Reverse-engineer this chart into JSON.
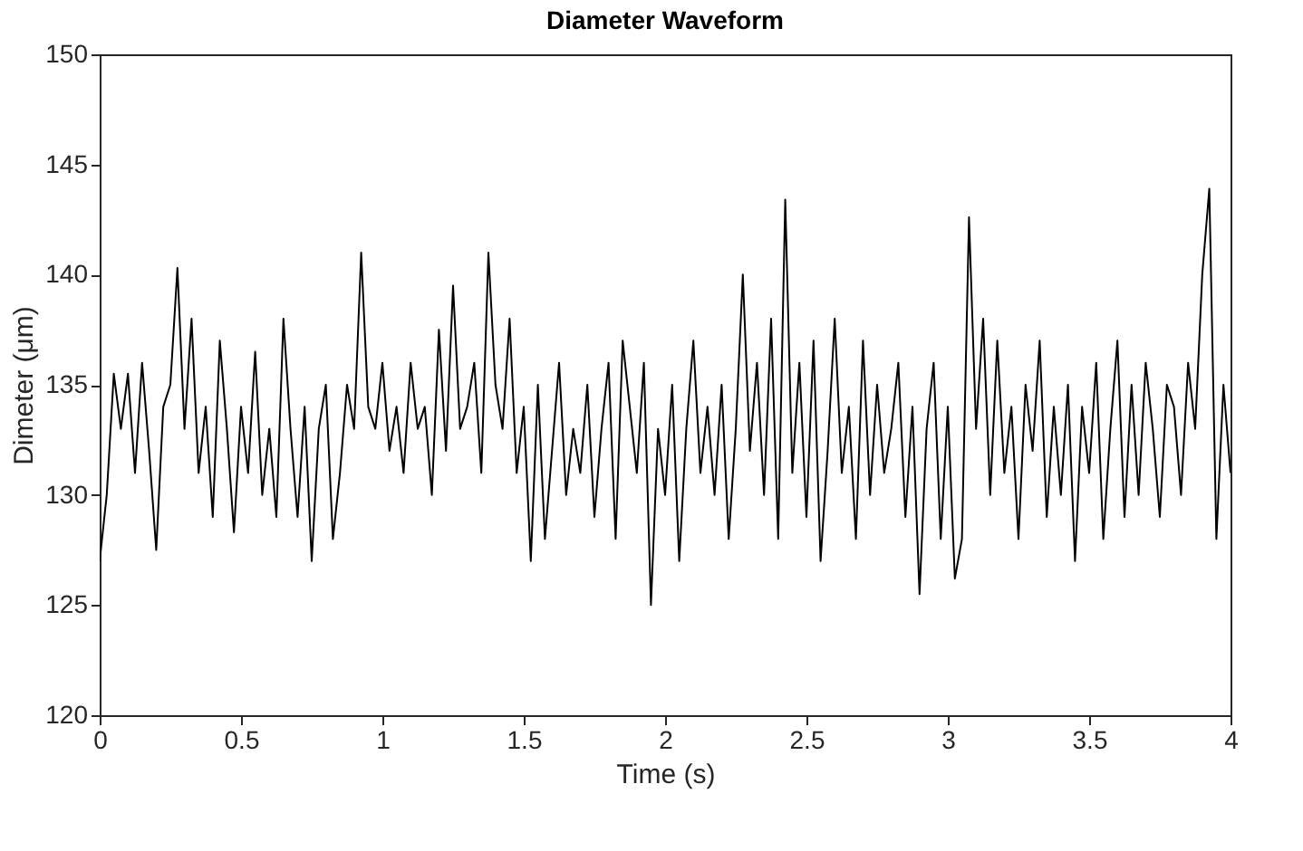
{
  "chart_data": {
    "type": "line",
    "title": "Diameter Waveform",
    "xlabel": "Time (s)",
    "ylabel": "Dimeter (μm)",
    "x": [
      0,
      0.025,
      0.05,
      0.075,
      0.1,
      0.125,
      0.15,
      0.175,
      0.2,
      0.225,
      0.25,
      0.275,
      0.3,
      0.325,
      0.35,
      0.375,
      0.4,
      0.425,
      0.45,
      0.475,
      0.5,
      0.525,
      0.55,
      0.575,
      0.6,
      0.625,
      0.65,
      0.675,
      0.7,
      0.725,
      0.75,
      0.775,
      0.8,
      0.825,
      0.85,
      0.875,
      0.9,
      0.925,
      0.95,
      0.975,
      1.0,
      1.025,
      1.05,
      1.075,
      1.1,
      1.125,
      1.15,
      1.175,
      1.2,
      1.225,
      1.25,
      1.275,
      1.3,
      1.325,
      1.35,
      1.375,
      1.4,
      1.425,
      1.45,
      1.475,
      1.5,
      1.525,
      1.55,
      1.575,
      1.6,
      1.625,
      1.65,
      1.675,
      1.7,
      1.725,
      1.75,
      1.775,
      1.8,
      1.825,
      1.85,
      1.875,
      1.9,
      1.925,
      1.95,
      1.975,
      2.0,
      2.025,
      2.05,
      2.075,
      2.1,
      2.125,
      2.15,
      2.175,
      2.2,
      2.225,
      2.25,
      2.275,
      2.3,
      2.325,
      2.35,
      2.375,
      2.4,
      2.425,
      2.45,
      2.475,
      2.5,
      2.525,
      2.55,
      2.575,
      2.6,
      2.625,
      2.65,
      2.675,
      2.7,
      2.725,
      2.75,
      2.775,
      2.8,
      2.825,
      2.85,
      2.875,
      2.9,
      2.925,
      2.95,
      2.975,
      3.0,
      3.025,
      3.05,
      3.075,
      3.1,
      3.125,
      3.15,
      3.175,
      3.2,
      3.225,
      3.25,
      3.275,
      3.3,
      3.325,
      3.35,
      3.375,
      3.4,
      3.425,
      3.45,
      3.475,
      3.5,
      3.525,
      3.55,
      3.575,
      3.6,
      3.625,
      3.65,
      3.675,
      3.7,
      3.725,
      3.75,
      3.775,
      3.8,
      3.825,
      3.85,
      3.875,
      3.9,
      3.925,
      3.95,
      3.975,
      4.0
    ],
    "series": [
      {
        "color": "#000000",
        "values": [
          127,
          130,
          135.5,
          133,
          135.5,
          131,
          136,
          132,
          127.5,
          134,
          135,
          140.3,
          133,
          138,
          131,
          134,
          129,
          137,
          133,
          128.3,
          134,
          131,
          136.5,
          130,
          133,
          129,
          138,
          133,
          129,
          134,
          127,
          133,
          135,
          128,
          131,
          135,
          133,
          141,
          134,
          133,
          136,
          132,
          134,
          131,
          136,
          133,
          134,
          130,
          137.5,
          132,
          139.5,
          133,
          134,
          136,
          131,
          141,
          135,
          133,
          138,
          131,
          134,
          127,
          135,
          128,
          132,
          136,
          130,
          133,
          131,
          135,
          129,
          133,
          136,
          128,
          137,
          134,
          131,
          136,
          125,
          133,
          130,
          135,
          127,
          133,
          137,
          131,
          134,
          130,
          135,
          128,
          133,
          140,
          132,
          136,
          130,
          138,
          128,
          143.4,
          131,
          136,
          129,
          137,
          127,
          132,
          138,
          131,
          134,
          128,
          137,
          130,
          135,
          131,
          133,
          136,
          129,
          134,
          125.5,
          133,
          136,
          128,
          134,
          126.2,
          128,
          142.6,
          133,
          138,
          130,
          137,
          131,
          134,
          128,
          135,
          132,
          137,
          129,
          134,
          130,
          135,
          127,
          134,
          131,
          136,
          128,
          133,
          137,
          129,
          135,
          130,
          136,
          133,
          129,
          135,
          134,
          130,
          136,
          133,
          140,
          143.9,
          128,
          135,
          131
        ]
      }
    ],
    "xlim": [
      0,
      4
    ],
    "xticks": [
      0,
      0.5,
      1,
      1.5,
      2,
      2.5,
      3,
      3.5,
      4
    ],
    "ylim": [
      120,
      150
    ],
    "yticks": [
      120,
      125,
      130,
      135,
      140,
      145,
      150
    ],
    "grid": false,
    "legend": false,
    "line_style": "solid",
    "marker": "none"
  }
}
